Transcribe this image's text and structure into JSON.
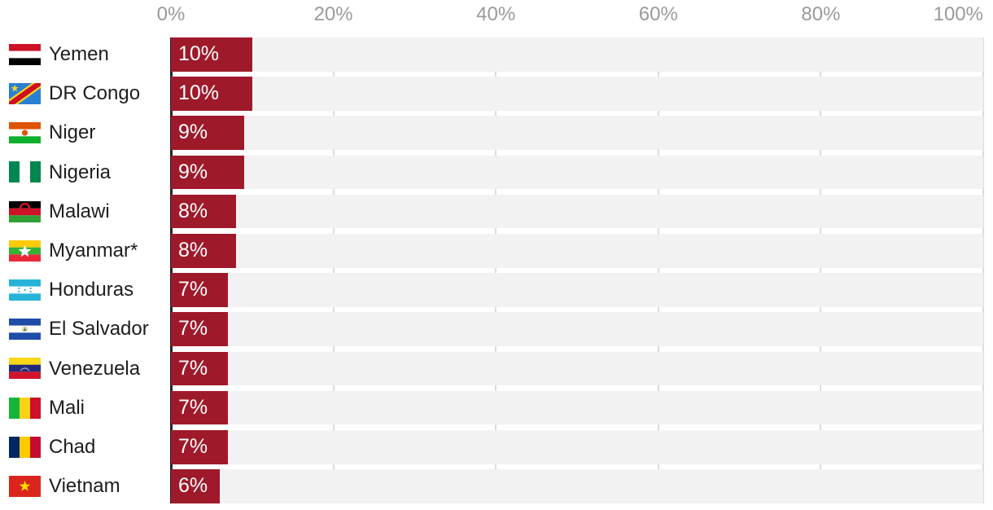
{
  "chart_data": {
    "type": "bar",
    "orientation": "horizontal",
    "title": "",
    "xlabel": "",
    "ylabel": "",
    "xlim": [
      0,
      100
    ],
    "grid": true,
    "x_ticks": [
      "0%",
      "20%",
      "40%",
      "60%",
      "80%",
      "100%"
    ],
    "x_tick_values": [
      0,
      20,
      40,
      60,
      80,
      100
    ],
    "categories": [
      "Yemen",
      "DR Congo",
      "Niger",
      "Nigeria",
      "Malawi",
      "Myanmar*",
      "Honduras",
      "El Salvador",
      "Venezuela",
      "Mali",
      "Chad",
      "Vietnam"
    ],
    "values": [
      10,
      10,
      9,
      9,
      8,
      8,
      7,
      7,
      7,
      7,
      7,
      6
    ],
    "rows": [
      {
        "country": "Yemen",
        "value": 10,
        "value_label": "10%",
        "icon": "flag-yemen"
      },
      {
        "country": "DR Congo",
        "value": 10,
        "value_label": "10%",
        "icon": "flag-drcongo"
      },
      {
        "country": "Niger",
        "value": 9,
        "value_label": "9%",
        "icon": "flag-niger"
      },
      {
        "country": "Nigeria",
        "value": 9,
        "value_label": "9%",
        "icon": "flag-nigeria"
      },
      {
        "country": "Malawi",
        "value": 8,
        "value_label": "8%",
        "icon": "flag-malawi"
      },
      {
        "country": "Myanmar*",
        "value": 8,
        "value_label": "8%",
        "icon": "flag-myanmar"
      },
      {
        "country": "Honduras",
        "value": 7,
        "value_label": "7%",
        "icon": "flag-honduras"
      },
      {
        "country": "El Salvador",
        "value": 7,
        "value_label": "7%",
        "icon": "flag-elsalvador"
      },
      {
        "country": "Venezuela",
        "value": 7,
        "value_label": "7%",
        "icon": "flag-venezuela"
      },
      {
        "country": "Mali",
        "value": 7,
        "value_label": "7%",
        "icon": "flag-mali"
      },
      {
        "country": "Chad",
        "value": 7,
        "value_label": "7%",
        "icon": "flag-chad"
      },
      {
        "country": "Vietnam",
        "value": 6,
        "value_label": "6%",
        "icon": "flag-vietnam"
      }
    ],
    "colors": {
      "bar": "#9e1a2b",
      "row_background": "#f2f2f2",
      "gridline": "#dcdcdc",
      "axis_line": "#262626",
      "tick_label": "#9a9a9a",
      "category_label": "#1d1d1d",
      "value_label": "#ffffff"
    }
  }
}
